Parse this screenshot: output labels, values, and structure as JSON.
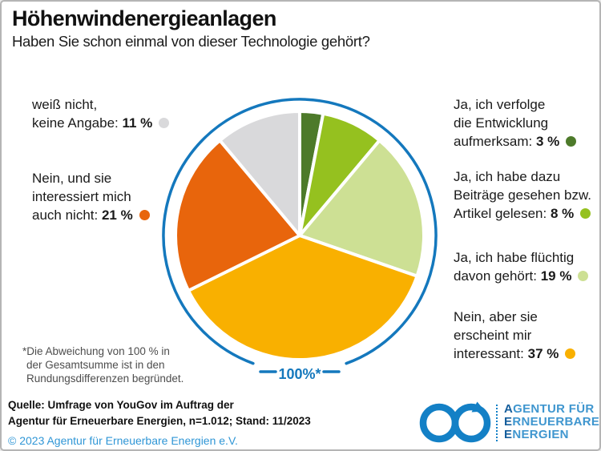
{
  "header": {
    "title": "Höhenwindenergieanlagen",
    "subtitle": "Haben Sie schon einmal von dieser Technologie gehört?"
  },
  "chart_data": {
    "type": "pie",
    "unit": "%",
    "start_angle_deg": 0,
    "direction": "clockwise",
    "total_label": "100%*",
    "ring_color": "#1478BD",
    "slice_gap_color": "#FFFFFF",
    "slices": [
      {
        "label": "Ja, ich verfolge die Entwicklung aufmerksam",
        "value": 3,
        "color": "#4D7A2A"
      },
      {
        "label": "Ja, ich habe dazu Beiträge gesehen bzw. Artikel gelesen",
        "value": 8,
        "color": "#95C11F"
      },
      {
        "label": "Ja, ich habe flüchtig davon gehört",
        "value": 19,
        "color": "#CDE094"
      },
      {
        "label": "Nein, aber sie erscheint mir interessant",
        "value": 37,
        "color": "#F9B000"
      },
      {
        "label": "Nein, und sie interessiert mich auch nicht",
        "value": 21,
        "color": "#E8650C"
      },
      {
        "label": "weiß nicht, keine Angabe",
        "value": 11,
        "color": "#D9D9DB"
      }
    ]
  },
  "legend": {
    "left": [
      {
        "lines": [
          "weiß nicht,"
        ],
        "last_prefix": "keine Angabe: ",
        "percent": "11 %",
        "color": "#D9D9DB"
      },
      {
        "lines": [
          "Nein, und sie",
          "interessiert mich"
        ],
        "last_prefix": "auch nicht: ",
        "percent": "21 %",
        "color": "#E8650C"
      }
    ],
    "right": [
      {
        "lines": [
          "Ja, ich verfolge",
          "die Entwicklung"
        ],
        "last_prefix": "aufmerksam: ",
        "percent": "3 %",
        "color": "#4D7A2A"
      },
      {
        "lines": [
          "Ja, ich habe dazu",
          "Beiträge gesehen bzw."
        ],
        "last_prefix": "Artikel gelesen: ",
        "percent": "8 %",
        "color": "#95C11F"
      },
      {
        "lines": [
          "Ja, ich habe flüchtig"
        ],
        "last_prefix": "davon gehört: ",
        "percent": "19 %",
        "color": "#CDE094"
      },
      {
        "lines": [
          "Nein, aber sie",
          "erscheint mir"
        ],
        "last_prefix": "interessant: ",
        "percent": "37 %",
        "color": "#F9B000"
      }
    ]
  },
  "footnote": {
    "lines": [
      "*Die Abweichung von 100 % in",
      "der Gesamtsumme ist in den",
      "Rundungsdifferenzen begründet."
    ]
  },
  "source": {
    "line1": "Quelle: Umfrage von YouGov im Auftrag der",
    "line2": "Agentur für Erneuerbare Energien, n=1.012; Stand: 11/2023",
    "copyright": "© 2023 Agentur für Erneuerbare Energien e.V.",
    "copyright_color": "#2F96D6"
  },
  "logo": {
    "symbol": "infinity-arrow",
    "color": "#1380C6",
    "lead_color": "#155E9C",
    "text_color": "#3F96CF",
    "lines": [
      {
        "lead": "A",
        "rest": "GENTUR FÜR"
      },
      {
        "lead": "E",
        "rest": "RNEUERBARE"
      },
      {
        "lead": "E",
        "rest": "NERGIEN"
      }
    ]
  }
}
